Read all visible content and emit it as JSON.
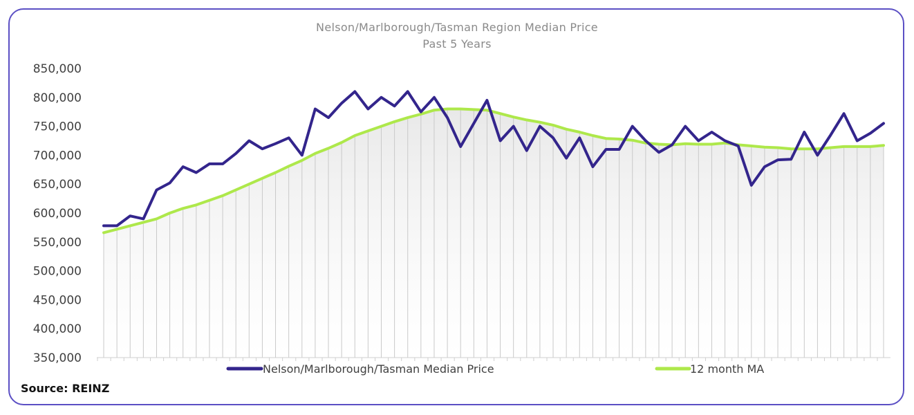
{
  "chart_data": {
    "type": "line",
    "title": "Nelson/Marlborough/Tasman  Region Median Price",
    "subtitle": "Past 5 Years",
    "xlabel": "",
    "ylabel": "",
    "ylim": [
      350000,
      850000
    ],
    "yticks": [
      "850,000",
      "800,000",
      "750,000",
      "700,000",
      "650,000",
      "600,000",
      "550,000",
      "500,000",
      "450,000",
      "400,000",
      "350,000"
    ],
    "ytick_values": [
      850000,
      800000,
      750000,
      700000,
      650000,
      600000,
      550000,
      500000,
      450000,
      400000,
      350000
    ],
    "grid": "vertical drop lines with light gradient area under moving average",
    "legend_position": "bottom",
    "series": [
      {
        "name": "Nelson/Marlborough/Tasman Median Price",
        "color": "#33258c",
        "values": [
          578000,
          578000,
          595000,
          590000,
          640000,
          652000,
          680000,
          670000,
          685000,
          685000,
          703000,
          725000,
          711000,
          720000,
          730000,
          700000,
          780000,
          765000,
          790000,
          810000,
          780000,
          800000,
          785000,
          810000,
          775000,
          800000,
          765000,
          715000,
          755000,
          795000,
          725000,
          750000,
          708000,
          750000,
          730000,
          695000,
          730000,
          680000,
          710000,
          710000,
          750000,
          725000,
          705000,
          718000,
          750000,
          725000,
          740000,
          725000,
          716000,
          648000,
          680000,
          692000,
          693000,
          740000,
          700000,
          735000,
          772000,
          725000,
          738000,
          755000
        ]
      },
      {
        "name": "12 month MA",
        "color": "#aee84b",
        "values": [
          566000,
          572000,
          578000,
          584000,
          590000,
          600000,
          608000,
          614000,
          622000,
          630000,
          640000,
          650000,
          660000,
          670000,
          681000,
          691000,
          703000,
          712000,
          722000,
          734000,
          742000,
          750000,
          758000,
          765000,
          771000,
          778000,
          780000,
          780000,
          779000,
          778000,
          772000,
          766000,
          761000,
          757000,
          752000,
          745000,
          740000,
          734000,
          729000,
          728000,
          726000,
          721000,
          719000,
          718000,
          720000,
          719000,
          719000,
          721000,
          718000,
          716000,
          714000,
          713000,
          711000,
          711000,
          711000,
          713000,
          715000,
          715000,
          715000,
          717000
        ]
      }
    ]
  },
  "source_label": "Source: REINZ",
  "colors": {
    "frame": "#5b4fc4",
    "median": "#33258c",
    "ma": "#aee84b"
  }
}
